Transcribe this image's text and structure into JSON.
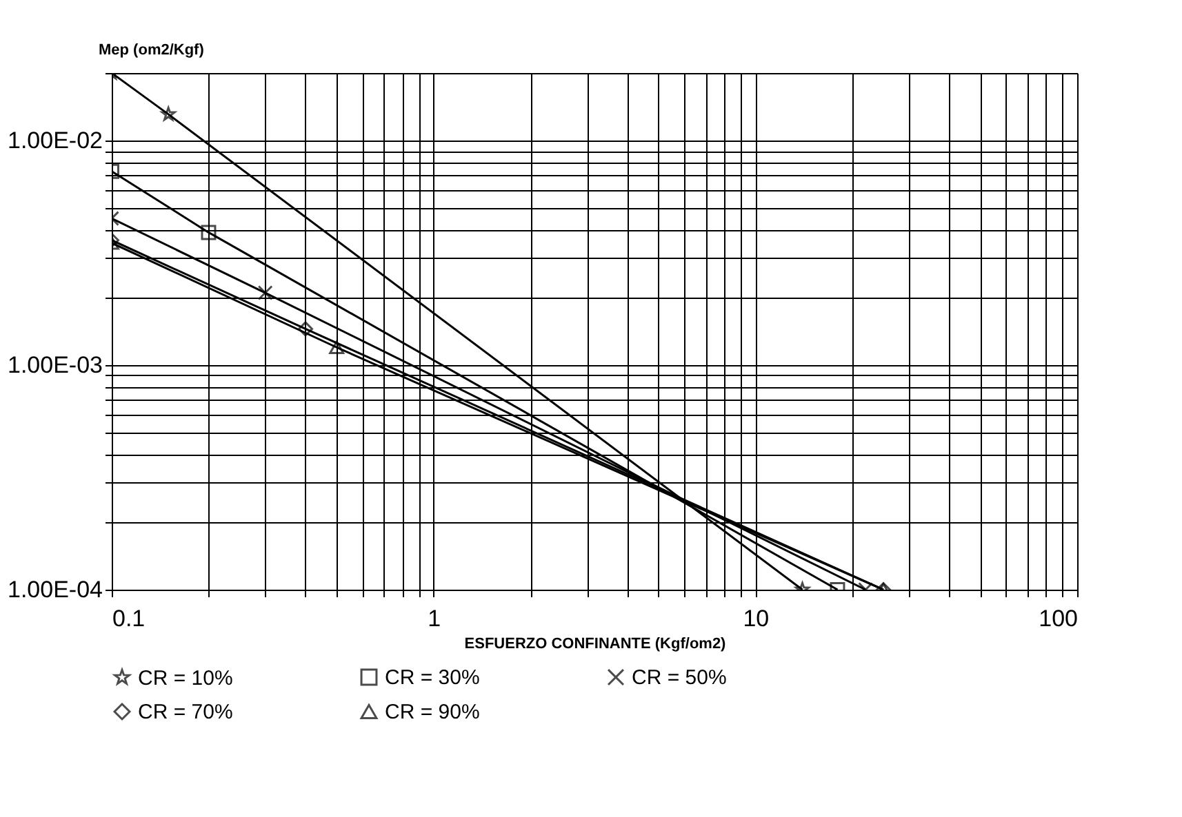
{
  "chart_data": {
    "type": "line",
    "xlabel": "ESFUERZO CONFINANTE (Kgf/om2)",
    "ylabel": "Mep (om2/Kgf)",
    "log": "xy",
    "grid": true,
    "legend": "bottom",
    "line_style": "solid",
    "xlim": [
      0.1,
      100
    ],
    "ylim": [
      0.0001,
      0.02
    ],
    "xticks": [
      0.1,
      {
        "value": 0.2,
        "label": null
      },
      {
        "value": 0.3,
        "label": null
      },
      {
        "value": 0.4,
        "label": null
      },
      {
        "value": 0.5,
        "label": null
      },
      {
        "value": 0.6,
        "label": null
      },
      {
        "value": 0.7,
        "label": null
      },
      {
        "value": 0.8,
        "label": null
      },
      {
        "value": 0.9,
        "label": null
      },
      1,
      {
        "value": 2,
        "label": null
      },
      {
        "value": 3,
        "label": null
      },
      {
        "value": 4,
        "label": null
      },
      {
        "value": 5,
        "label": null
      },
      {
        "value": 6,
        "label": null
      },
      {
        "value": 7,
        "label": null
      },
      {
        "value": 8,
        "label": null
      },
      {
        "value": 9,
        "label": null
      },
      10,
      {
        "value": 20,
        "label": null
      },
      {
        "value": 30,
        "label": null
      },
      {
        "value": 40,
        "label": null
      },
      {
        "value": 50,
        "label": null
      },
      {
        "value": 60,
        "label": null
      },
      {
        "value": 70,
        "label": null
      },
      {
        "value": 80,
        "label": null
      },
      {
        "value": 90,
        "label": null
      },
      100
    ],
    "yticks": [
      {
        "value": 0.0001,
        "label": "1.00E-04"
      },
      {
        "value": 0.0002,
        "label": null
      },
      {
        "value": 0.0003,
        "label": null
      },
      {
        "value": 0.0004,
        "label": null
      },
      {
        "value": 0.0005,
        "label": null
      },
      {
        "value": 0.0006,
        "label": null
      },
      {
        "value": 0.0007,
        "label": null
      },
      {
        "value": 0.0008,
        "label": null
      },
      {
        "value": 0.0009,
        "label": null
      },
      {
        "value": 0.001,
        "label": "1.00E-03"
      },
      {
        "value": 0.002,
        "label": null
      },
      {
        "value": 0.003,
        "label": null
      },
      {
        "value": 0.004,
        "label": null
      },
      {
        "value": 0.005,
        "label": null
      },
      {
        "value": 0.006,
        "label": null
      },
      {
        "value": 0.007,
        "label": null
      },
      {
        "value": 0.008,
        "label": null
      },
      {
        "value": 0.009,
        "label": null
      },
      {
        "value": 0.01,
        "label": "1.00E-02"
      },
      {
        "value": 0.02,
        "label": null
      }
    ],
    "series": [
      {
        "name": "CR = 10%",
        "color": "#000000",
        "marker": "star",
        "x": [
          0.1,
          0.15,
          14
        ],
        "values": [
          0.02,
          0.0131,
          0.0001
        ]
      },
      {
        "name": "CR = 30%",
        "color": "#000000",
        "marker": "square",
        "x": [
          0.1,
          0.2,
          18
        ],
        "values": [
          0.0073,
          0.0039,
          0.0001
        ]
      },
      {
        "name": "CR = 50%",
        "color": "#000000",
        "marker": "cross",
        "x": [
          0.1,
          0.3,
          22
        ],
        "values": [
          0.0045,
          0.0021,
          0.0001
        ]
      },
      {
        "name": "CR = 70%",
        "color": "#000000",
        "marker": "diamond",
        "x": [
          0.1,
          0.4,
          25
        ],
        "values": [
          0.0036,
          0.00145,
          0.0001
        ]
      },
      {
        "name": "CR = 90%",
        "color": "#000000",
        "marker": "triangle",
        "x": [
          0.1,
          0.5,
          25
        ],
        "values": [
          0.0035,
          0.0012,
          0.0001
        ]
      }
    ]
  }
}
